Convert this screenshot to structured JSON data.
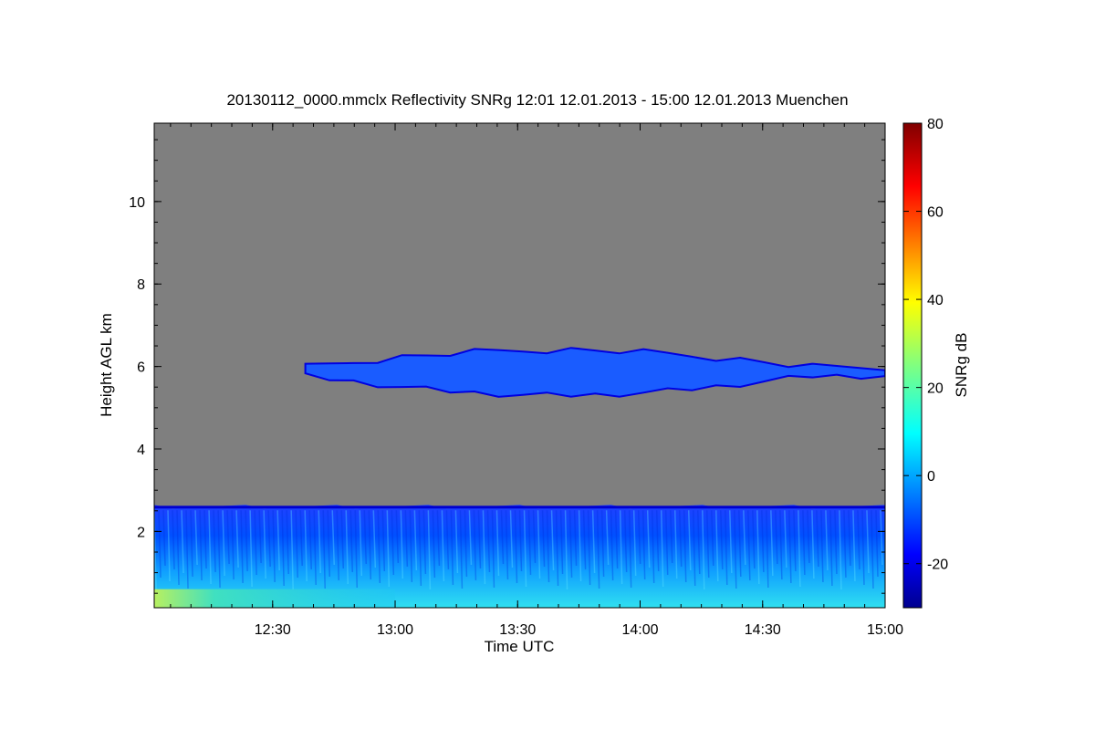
{
  "chart_data": {
    "type": "heatmap",
    "title": "20130112_0000.mmclx Reflectivity SNRg   12:01 12.01.2013 - 15:00 12.01.2013 Muenchen",
    "xlabel": "Time UTC",
    "ylabel": "Height AGL km",
    "colorbar_label": "SNRg dB",
    "x_range": [
      "12:01",
      "15:00"
    ],
    "x_ticks": [
      "12:30",
      "13:00",
      "13:30",
      "14:00",
      "14:30",
      "15:00"
    ],
    "y_range": [
      0.15,
      11.9
    ],
    "y_ticks": [
      2,
      4,
      6,
      8,
      10
    ],
    "colorbar_range": [
      -30,
      80
    ],
    "colorbar_ticks": [
      -20,
      0,
      20,
      40,
      60,
      80
    ],
    "colormap": "jet",
    "no_signal_color": "#7f7f7f",
    "features": [
      {
        "layer": "upper cloud layer",
        "time_start": "12:38",
        "time_end": "15:00",
        "height_base_km": 5.3,
        "height_top_km": 6.4,
        "snr_db": -10
      },
      {
        "layer": "low cloud layer",
        "time_start": "12:01",
        "time_end": "15:00",
        "height_base_km": 0.15,
        "height_top_km": 2.6,
        "snr_db": 0
      },
      {
        "layer": "surface echo",
        "time_start": "12:01",
        "time_end": "13:00",
        "height_base_km": 0.15,
        "height_top_km": 0.6,
        "snr_db": 20
      }
    ]
  }
}
